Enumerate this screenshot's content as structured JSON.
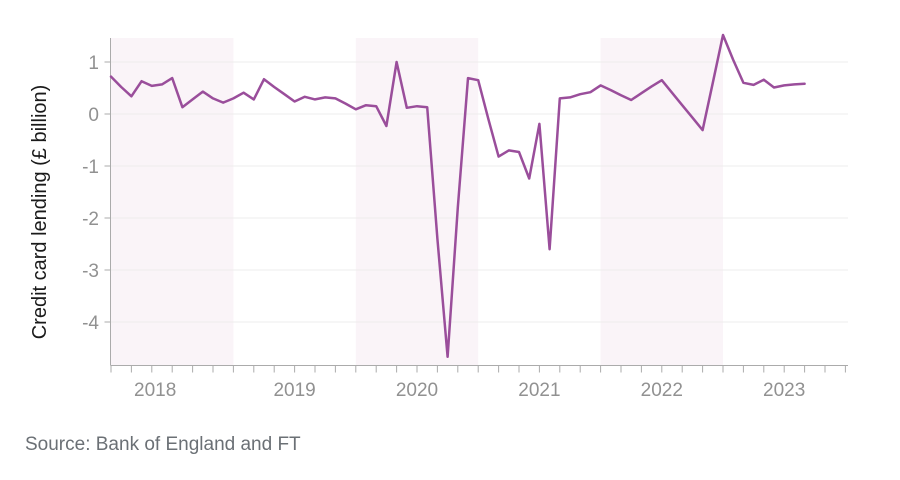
{
  "chart_data": {
    "type": "line",
    "title": "",
    "xlabel": "",
    "ylabel": "Credit card lending (£ billion)",
    "source": "Source: Bank of England and FT",
    "series_name": "Credit card lending",
    "frequency": "monthly",
    "x_start": "2017-07",
    "x_end": "2023-03",
    "x": [
      "2017-07",
      "2017-08",
      "2017-09",
      "2017-10",
      "2017-11",
      "2017-12",
      "2018-01",
      "2018-02",
      "2018-03",
      "2018-04",
      "2018-05",
      "2018-06",
      "2018-07",
      "2018-08",
      "2018-09",
      "2018-10",
      "2018-11",
      "2018-12",
      "2019-01",
      "2019-02",
      "2019-03",
      "2019-04",
      "2019-05",
      "2019-06",
      "2019-07",
      "2019-08",
      "2019-09",
      "2019-10",
      "2019-11",
      "2019-12",
      "2020-01",
      "2020-02",
      "2020-03",
      "2020-04",
      "2020-05",
      "2020-06",
      "2020-07",
      "2020-08",
      "2020-09",
      "2020-10",
      "2020-11",
      "2020-12",
      "2021-01",
      "2021-02",
      "2021-03",
      "2021-04",
      "2021-05",
      "2021-06",
      "2021-07",
      "2021-08",
      "2021-09",
      "2021-10",
      "2021-11",
      "2021-12",
      "2022-01",
      "2022-02",
      "2022-03",
      "2022-04",
      "2022-05",
      "2022-06",
      "2022-07",
      "2022-08",
      "2022-09",
      "2022-10",
      "2022-11",
      "2022-12",
      "2023-01",
      "2023-02",
      "2023-03"
    ],
    "values": [
      0.72,
      0.52,
      0.34,
      0.63,
      0.54,
      0.57,
      0.69,
      0.13,
      0.28,
      0.43,
      0.3,
      0.22,
      0.3,
      0.41,
      0.28,
      0.67,
      0.52,
      0.38,
      0.24,
      0.33,
      0.28,
      0.32,
      0.3,
      0.2,
      0.09,
      0.17,
      0.15,
      -0.23,
      1.0,
      0.12,
      0.15,
      0.13,
      -2.4,
      -4.67,
      -1.8,
      0.69,
      0.65,
      -0.1,
      -0.82,
      -0.7,
      -0.73,
      -1.24,
      -0.19,
      -2.6,
      0.3,
      0.32,
      0.38,
      0.42,
      0.55,
      0.46,
      0.36,
      0.27,
      0.4,
      0.53,
      0.65,
      0.41,
      0.17,
      -0.07,
      -0.31,
      0.6,
      1.52,
      1.04,
      0.6,
      0.56,
      0.66,
      0.51,
      0.55,
      0.57,
      0.58
    ],
    "ylim": [
      -4.83,
      1.6
    ],
    "yticks": [
      1,
      0,
      -1,
      -2,
      -3,
      -4
    ],
    "xtick_year_labels": [
      "2018",
      "2019",
      "2020",
      "2021",
      "2022",
      "2023"
    ],
    "x_tick_interval_months": 2,
    "grid": "horizontal",
    "legend": "none",
    "line_color": "#9a4e9b",
    "band_color": "#faf4f8",
    "shaded_periods": [
      {
        "from": "2017-07",
        "to": "2018-07"
      },
      {
        "from": "2019-07",
        "to": "2020-07"
      },
      {
        "from": "2021-07",
        "to": "2022-07"
      }
    ]
  },
  "colors": {
    "axis": "#ababab",
    "grid": "#ededed",
    "tick_label": "#919191",
    "axis_title": "#1a1a1a",
    "source_text": "#6b7075",
    "background": "#ffffff"
  }
}
